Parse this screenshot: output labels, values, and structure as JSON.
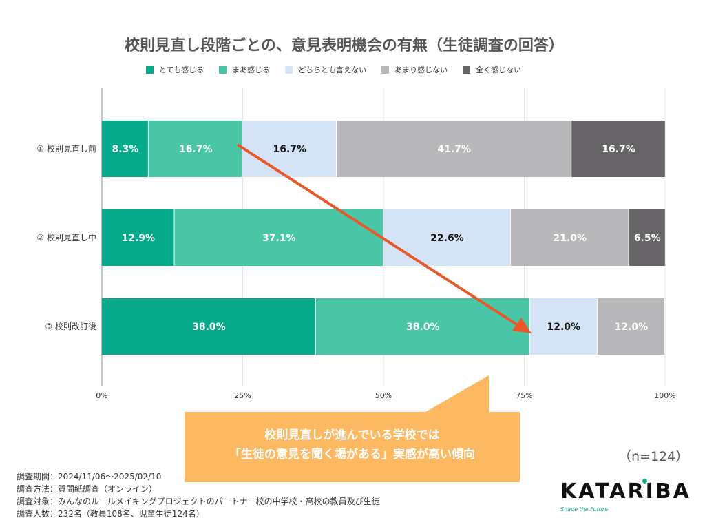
{
  "chart_data": {
    "type": "bar",
    "orientation": "horizontal",
    "stacked": true,
    "title": "校則見直し段階ごとの、意見表明機会の有無（生徒調査の回答）",
    "categories": [
      "① 校則見直し前",
      "② 校則見直し中",
      "③ 校則改訂後"
    ],
    "series": [
      {
        "name": "とても感じる",
        "color": "#06a98a",
        "values": [
          8.3,
          12.9,
          38.0
        ]
      },
      {
        "name": "まあ感じる",
        "color": "#48c6a6",
        "values": [
          16.7,
          37.1,
          38.0
        ]
      },
      {
        "name": "どちらとも言えない",
        "color": "#d4e3f5",
        "values": [
          16.7,
          22.6,
          12.0
        ]
      },
      {
        "name": "あまり感じない",
        "color": "#b8b7b9",
        "values": [
          41.7,
          21.0,
          12.0
        ]
      },
      {
        "name": "全く感じない",
        "color": "#666467",
        "values": [
          16.7,
          6.5,
          0
        ]
      }
    ],
    "xticks": [
      "0%",
      "25%",
      "50%",
      "75%",
      "100%"
    ],
    "xlim": [
      0,
      100
    ],
    "grid": true,
    "legend": "top"
  },
  "callout": {
    "line1": "校則見直しが進んでいる学校では",
    "line2": "「生徒の意見を聞く場がある」実感が高い傾向"
  },
  "sample": "（n=124）",
  "notes": [
    "調査期間：2024/11/06〜2025/02/10",
    "調査方法：質問紙調査（オンライン）",
    "調査対象：みんなのルールメイキングプロジェクトのパートナー校の中学校・高校の教員及び生徒",
    "調査人数：232名（教員108名、児童生徒124名）"
  ],
  "logo": {
    "name": "KATARIBA",
    "tagline": "Shape the Future"
  },
  "colors": {
    "arrow": "#e8582a",
    "callout": "#fdb962"
  }
}
